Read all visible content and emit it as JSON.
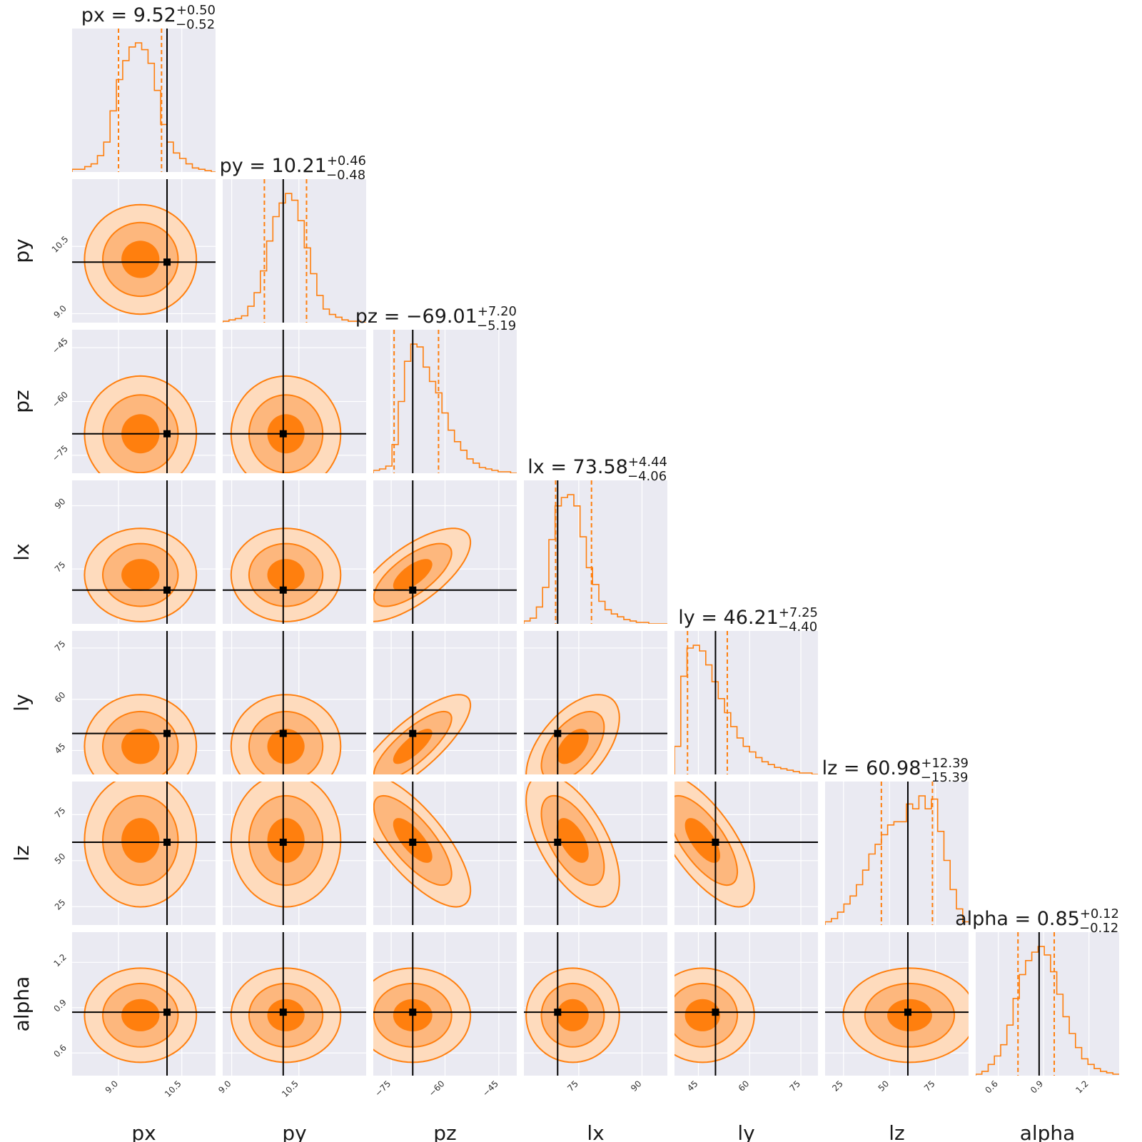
{
  "figure": {
    "type": "corner-plot"
  },
  "colors": {
    "panel_bg": "#eaeaf2",
    "grid": "#ffffff",
    "posterior": "#ff7f0e",
    "level_inner": "#ff7f0e",
    "level_mid": "#fdb77d",
    "level_outer": "#fedbbd",
    "truth": "#000000"
  },
  "chart_data": {
    "type": "corner",
    "parameters": [
      {
        "name": "px",
        "label": "px",
        "median": 9.52,
        "plus": "+0.50",
        "minus": "−0.52",
        "median_text": "9.52",
        "truth": 10.15,
        "range": [
          7.9,
          11.3
        ],
        "ticks": [
          9.0,
          10.5
        ],
        "tick_labels": [
          "9.0",
          "10.5"
        ],
        "title_prefix": "px = "
      },
      {
        "name": "py",
        "label": "py",
        "median": 10.21,
        "plus": "+0.46",
        "minus": "−0.48",
        "median_text": "10.21",
        "truth": 10.15,
        "range": [
          8.8,
          12.0
        ],
        "ticks": [
          9.0,
          10.5
        ],
        "tick_labels": [
          "9.0",
          "10.5"
        ],
        "title_prefix": "py = "
      },
      {
        "name": "pz",
        "label": "pz",
        "median": -69.01,
        "plus": "+7.20",
        "minus": "−5.19",
        "median_text": "−69.01",
        "truth": -69.0,
        "range": [
          -80,
          -40
        ],
        "ticks": [
          -75,
          -60,
          -45
        ],
        "tick_labels": [
          "−75",
          "−60",
          "−45"
        ],
        "title_prefix": "pz = "
      },
      {
        "name": "lx",
        "label": "lx",
        "median": 73.58,
        "plus": "+4.44",
        "minus": "−4.06",
        "median_text": "73.58",
        "truth": 70.0,
        "range": [
          62,
          96
        ],
        "ticks": [
          75,
          90
        ],
        "tick_labels": [
          "75",
          "90"
        ],
        "title_prefix": "lx = "
      },
      {
        "name": "ly",
        "label": "ly",
        "median": 46.21,
        "plus": "+7.25",
        "minus": "−4.40",
        "median_text": "46.21",
        "truth": 50.0,
        "range": [
          38,
          80
        ],
        "ticks": [
          45,
          60,
          75
        ],
        "tick_labels": [
          "45",
          "60",
          "75"
        ],
        "title_prefix": "ly = "
      },
      {
        "name": "lz",
        "label": "lz",
        "median": 60.98,
        "plus": "+12.39",
        "minus": "−15.39",
        "median_text": "60.98",
        "truth": 60.0,
        "range": [
          15,
          93
        ],
        "ticks": [
          25,
          50,
          75
        ],
        "tick_labels": [
          "25",
          "50",
          "75"
        ],
        "title_prefix": "lz = "
      },
      {
        "name": "alpha",
        "label": "alpha",
        "median": 0.85,
        "plus": "+0.12",
        "minus": "−0.12",
        "median_text": "0.85",
        "truth": 0.87,
        "range": [
          0.45,
          1.4
        ],
        "ticks": [
          0.6,
          0.9,
          1.2
        ],
        "tick_labels": [
          "0.6",
          "0.9",
          "1.2"
        ],
        "title_prefix": "alpha = "
      }
    ],
    "correlations": [
      [
        1.0,
        0.0,
        0.0,
        0.0,
        0.0,
        0.0,
        0.0
      ],
      [
        0.0,
        1.0,
        0.0,
        0.0,
        0.0,
        0.0,
        0.0
      ],
      [
        0.0,
        0.0,
        1.0,
        0.7,
        0.8,
        -0.75,
        0.0
      ],
      [
        0.0,
        0.0,
        0.7,
        1.0,
        0.55,
        -0.6,
        0.0
      ],
      [
        0.0,
        0.0,
        0.8,
        0.55,
        1.0,
        -0.7,
        0.0
      ],
      [
        0.0,
        0.0,
        -0.75,
        -0.6,
        -0.7,
        1.0,
        0.0
      ],
      [
        0.0,
        0.0,
        0.0,
        0.0,
        0.0,
        0.0,
        1.0
      ]
    ],
    "histograms": [
      {
        "bin_edges": [
          7.9,
          8.05,
          8.2,
          8.35,
          8.5,
          8.65,
          8.8,
          8.95,
          9.1,
          9.25,
          9.4,
          9.55,
          9.7,
          9.85,
          10.0,
          10.15,
          10.3,
          10.45,
          10.6,
          10.75,
          10.9,
          11.05,
          11.2,
          11.35
        ],
        "counts": [
          2,
          2,
          4,
          6,
          12,
          22,
          45,
          68,
          82,
          92,
          95,
          90,
          80,
          60,
          35,
          22,
          14,
          10,
          6,
          3,
          2,
          1,
          0
        ]
      },
      {
        "bin_edges": [
          8.8,
          8.94,
          9.08,
          9.22,
          9.36,
          9.5,
          9.64,
          9.78,
          9.92,
          10.06,
          10.2,
          10.34,
          10.48,
          10.62,
          10.76,
          10.9,
          11.04,
          11.18,
          11.32,
          11.46,
          11.6,
          11.74,
          11.88,
          12.02
        ],
        "counts": [
          1,
          2,
          3,
          5,
          12,
          22,
          38,
          60,
          78,
          88,
          95,
          90,
          75,
          55,
          36,
          20,
          10,
          6,
          4,
          2,
          1,
          1,
          0
        ]
      },
      {
        "bin_edges": [
          -80,
          -78.26,
          -76.52,
          -74.78,
          -73.04,
          -71.3,
          -69.56,
          -67.82,
          -66.08,
          -64.34,
          -62.6,
          -60.86,
          -59.12,
          -57.38,
          -55.64,
          -53.9,
          -52.16,
          -50.42,
          -48.68,
          -46.94,
          -45.2,
          -43.46,
          -41.72,
          -40
        ],
        "counts": [
          2,
          3,
          5,
          20,
          50,
          78,
          90,
          88,
          74,
          64,
          56,
          42,
          30,
          22,
          16,
          10,
          7,
          4,
          3,
          2,
          1,
          1,
          0
        ]
      },
      {
        "bin_edges": [
          62,
          63.48,
          64.96,
          66.44,
          67.92,
          69.4,
          70.88,
          72.36,
          73.84,
          75.32,
          76.8,
          78.28,
          79.76,
          81.24,
          82.72,
          84.2,
          85.68,
          87.16,
          88.64,
          90.12,
          91.6,
          93.08,
          94.56,
          96.04
        ],
        "counts": [
          2,
          4,
          12,
          26,
          60,
          84,
          90,
          92,
          84,
          62,
          40,
          28,
          16,
          10,
          7,
          5,
          3,
          2,
          1,
          1,
          0,
          0,
          0
        ]
      },
      {
        "bin_edges": [
          38,
          39.83,
          41.66,
          43.49,
          45.32,
          47.15,
          48.98,
          50.81,
          52.64,
          54.47,
          56.3,
          58.13,
          59.96,
          61.79,
          63.62,
          65.45,
          67.28,
          69.11,
          70.94,
          72.77,
          74.6,
          76.43,
          78.26,
          80.09
        ],
        "counts": [
          20,
          70,
          90,
          92,
          88,
          78,
          66,
          54,
          44,
          34,
          26,
          20,
          16,
          12,
          9,
          7,
          5,
          4,
          3,
          2,
          1,
          1,
          0
        ]
      },
      {
        "bin_edges": [
          15,
          18.4,
          21.8,
          25.2,
          28.6,
          32,
          35.4,
          38.8,
          42.2,
          45.6,
          49,
          52.4,
          55.8,
          59.2,
          62.6,
          66,
          69.4,
          72.8,
          76.2,
          79.6,
          83,
          86.4,
          89.8,
          93.2
        ],
        "counts": [
          2,
          4,
          8,
          13,
          18,
          25,
          34,
          44,
          50,
          56,
          62,
          64,
          64,
          75,
          72,
          80,
          72,
          78,
          58,
          40,
          22,
          10,
          2
        ]
      },
      {
        "bin_edges": [
          0.45,
          0.4913,
          0.5326,
          0.5739,
          0.6152,
          0.6565,
          0.6978,
          0.7391,
          0.7804,
          0.8217,
          0.863,
          0.9043,
          0.9456,
          0.9869,
          1.0282,
          1.0695,
          1.1108,
          1.1521,
          1.1934,
          1.2347,
          1.276,
          1.3173,
          1.3586,
          1.3999
        ],
        "counts": [
          1,
          3,
          8,
          14,
          22,
          36,
          55,
          72,
          82,
          88,
          92,
          86,
          74,
          58,
          42,
          30,
          20,
          12,
          8,
          5,
          3,
          2,
          1
        ]
      }
    ],
    "quantile_lines": "dashed 16% and 84%",
    "truth_lines": "solid black with square markers",
    "contour_levels": 3,
    "grid": true,
    "legend": "none"
  }
}
